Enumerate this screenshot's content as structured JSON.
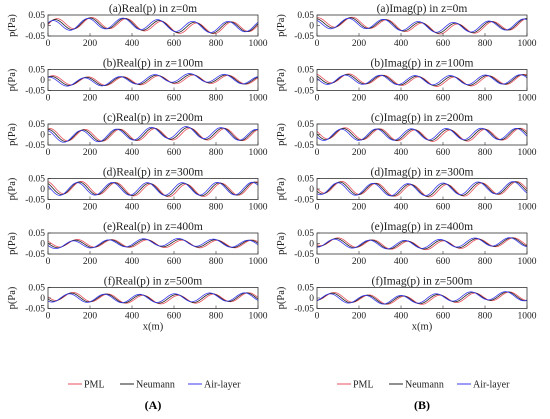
{
  "figure": {
    "panel_labels": [
      "(A)",
      "(B)"
    ],
    "legend": [
      {
        "name": "PML",
        "color": "#e8505b"
      },
      {
        "name": "Neumann",
        "color": "#222222"
      },
      {
        "name": "Air-layer",
        "color": "#3a3af0"
      }
    ],
    "x_label": "x(m)"
  },
  "chart_data": [
    {
      "type": "line",
      "column": 0,
      "title": "(a)Real(p) in z=0m",
      "ylabel": "p(Pa)",
      "xlim": [
        0,
        1000
      ],
      "ylim": [
        -0.05,
        0.05
      ],
      "xticks": [
        "0",
        "200",
        "400",
        "600",
        "800",
        "1000"
      ],
      "yticks": [
        "0.05",
        "0",
        "-0.05"
      ],
      "xlabel": "",
      "curves": {
        "amp": 0.026,
        "phase": 0.0,
        "bump": 0.9
      }
    },
    {
      "type": "line",
      "column": 0,
      "title": "(b)Real(p) in z=100m",
      "ylabel": "p(Pa)",
      "xlim": [
        0,
        1000
      ],
      "ylim": [
        -0.05,
        0.05
      ],
      "xticks": [
        "0",
        "200",
        "400",
        "600",
        "800",
        "1000"
      ],
      "yticks": [
        "0.05",
        "0",
        "-0.05"
      ],
      "xlabel": "",
      "curves": {
        "amp": 0.02,
        "phase": 0.6,
        "bump": -0.6
      }
    },
    {
      "type": "line",
      "column": 0,
      "title": "(c)Real(p) in z=200m",
      "ylabel": "p(Pa)",
      "xlim": [
        0,
        1000
      ],
      "ylim": [
        -0.05,
        0.05
      ],
      "xticks": [
        "0",
        "200",
        "400",
        "600",
        "800",
        "1000"
      ],
      "yticks": [
        "0.05",
        "0",
        "-0.05"
      ],
      "xlabel": "",
      "curves": {
        "amp": 0.028,
        "phase": 1.2,
        "bump": -0.5
      }
    },
    {
      "type": "line",
      "column": 0,
      "title": "(d)Real(p) in z=300m",
      "ylabel": "p(Pa)",
      "xlim": [
        0,
        1000
      ],
      "ylim": [
        -0.05,
        0.05
      ],
      "xticks": [
        "0",
        "200",
        "400",
        "600",
        "800",
        "1000"
      ],
      "yticks": [
        "0.05",
        "0",
        "-0.05"
      ],
      "xlabel": "",
      "curves": {
        "amp": 0.03,
        "phase": 1.9,
        "bump": 0.3
      }
    },
    {
      "type": "line",
      "column": 0,
      "title": "(e)Real(p) in z=400m",
      "ylabel": "p(Pa)",
      "xlim": [
        0,
        1000
      ],
      "ylim": [
        -0.05,
        0.05
      ],
      "xticks": [
        "0",
        "200",
        "400",
        "600",
        "800",
        "1000"
      ],
      "yticks": [
        "0.05",
        "0",
        "-0.05"
      ],
      "xlabel": "",
      "curves": {
        "amp": 0.018,
        "phase": 2.6,
        "bump": -0.2
      }
    },
    {
      "type": "line",
      "column": 0,
      "title": "(f)Real(p) in z=500m",
      "ylabel": "p(Pa)",
      "xlim": [
        0,
        1000
      ],
      "ylim": [
        -0.05,
        0.05
      ],
      "xticks": [
        "0",
        "200",
        "400",
        "600",
        "800",
        "1000"
      ],
      "yticks": [
        "0.05",
        "0",
        "-0.05"
      ],
      "xlabel": "x(m)",
      "curves": {
        "amp": 0.02,
        "phase": 3.3,
        "bump": 0.4
      }
    },
    {
      "type": "line",
      "column": 1,
      "title": "(a)Imag(p) in z=0m",
      "ylabel": "p(Pa)",
      "xlim": [
        0,
        1000
      ],
      "ylim": [
        -0.05,
        0.05
      ],
      "xticks": [
        "0",
        "200",
        "400",
        "600",
        "800",
        "1000"
      ],
      "yticks": [
        "0.05",
        "0",
        "-0.05"
      ],
      "xlabel": "",
      "curves": {
        "amp": 0.024,
        "phase": 1.5,
        "bump": 1.1
      }
    },
    {
      "type": "line",
      "column": 1,
      "title": "(b)Imag(p) in z=100m",
      "ylabel": "p(Pa)",
      "xlim": [
        0,
        1000
      ],
      "ylim": [
        -0.05,
        0.05
      ],
      "xticks": [
        "0",
        "200",
        "400",
        "600",
        "800",
        "1000"
      ],
      "yticks": [
        "0.05",
        "0",
        "-0.05"
      ],
      "xlabel": "",
      "curves": {
        "amp": 0.022,
        "phase": 2.1,
        "bump": 0.4
      }
    },
    {
      "type": "line",
      "column": 1,
      "title": "(c)Imag(p) in z=200m",
      "ylabel": "p(Pa)",
      "xlim": [
        0,
        1000
      ],
      "ylim": [
        -0.05,
        0.05
      ],
      "xticks": [
        "0",
        "200",
        "400",
        "600",
        "800",
        "1000"
      ],
      "yticks": [
        "0.05",
        "0",
        "-0.05"
      ],
      "xlabel": "",
      "curves": {
        "amp": 0.027,
        "phase": 2.8,
        "bump": 0.2
      }
    },
    {
      "type": "line",
      "column": 1,
      "title": "(d)Imag(p) in z=300m",
      "ylabel": "p(Pa)",
      "xlim": [
        0,
        1000
      ],
      "ylim": [
        -0.05,
        0.05
      ],
      "xticks": [
        "0",
        "200",
        "400",
        "600",
        "800",
        "1000"
      ],
      "yticks": [
        "0.05",
        "0",
        "-0.05"
      ],
      "xlabel": "",
      "curves": {
        "amp": 0.029,
        "phase": 3.4,
        "bump": 0.5
      }
    },
    {
      "type": "line",
      "column": 1,
      "title": "(e)Imag(p) in z=400m",
      "ylabel": "p(Pa)",
      "xlim": [
        0,
        1000
      ],
      "ylim": [
        -0.05,
        0.05
      ],
      "xticks": [
        "0",
        "200",
        "400",
        "600",
        "800",
        "1000"
      ],
      "yticks": [
        "0.05",
        "0",
        "-0.05"
      ],
      "xlabel": "",
      "curves": {
        "amp": 0.02,
        "phase": 4.0,
        "bump": 0.6
      }
    },
    {
      "type": "line",
      "column": 1,
      "title": "(f)Imag(p) in z=500m",
      "ylabel": "p(Pa)",
      "xlim": [
        0,
        1000
      ],
      "ylim": [
        -0.05,
        0.05
      ],
      "xticks": [
        "0",
        "200",
        "400",
        "600",
        "800",
        "1000"
      ],
      "yticks": [
        "0.05",
        "0",
        "-0.05"
      ],
      "xlabel": "x(m)",
      "curves": {
        "amp": 0.02,
        "phase": 4.7,
        "bump": 0.8
      }
    }
  ]
}
